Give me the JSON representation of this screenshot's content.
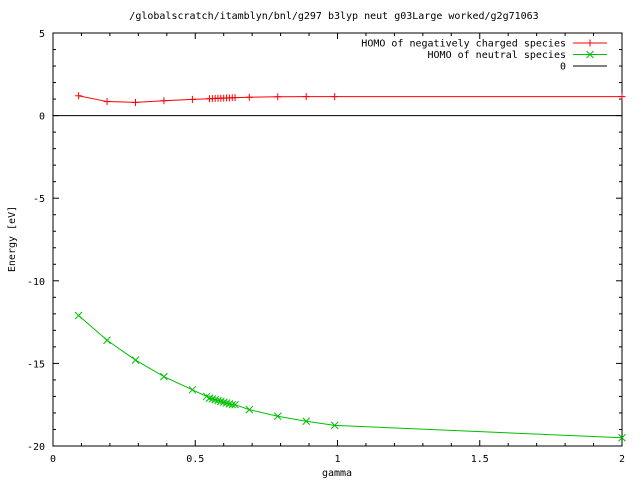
{
  "chart_data": {
    "type": "line",
    "title": "/globalscratch/itamblyn/bnl/g297 b3lyp neut g03Large worked/g2g71063",
    "xlabel": "gamma",
    "ylabel": "Energy [eV]",
    "xlim": [
      0,
      2
    ],
    "ylim": [
      -20,
      5
    ],
    "x_ticks": [
      "0",
      "0.5",
      "1",
      "1.5",
      "2"
    ],
    "y_ticks": [
      "5",
      "0",
      "-5",
      "-10",
      "-15",
      "-20"
    ],
    "legend_position": "top-right",
    "series": [
      {
        "name": "HOMO of negatively charged species",
        "color": "#ff0000",
        "marker": "plus",
        "points": [
          [
            0.09,
            1.2
          ],
          [
            0.19,
            0.85
          ],
          [
            0.29,
            0.8
          ],
          [
            0.39,
            0.9
          ],
          [
            0.49,
            0.98
          ],
          [
            0.55,
            1.02
          ],
          [
            0.56,
            1.03
          ],
          [
            0.57,
            1.04
          ],
          [
            0.58,
            1.05
          ],
          [
            0.59,
            1.05
          ],
          [
            0.6,
            1.06
          ],
          [
            0.61,
            1.07
          ],
          [
            0.62,
            1.07
          ],
          [
            0.63,
            1.08
          ],
          [
            0.64,
            1.09
          ],
          [
            0.69,
            1.11
          ],
          [
            0.79,
            1.14
          ],
          [
            0.89,
            1.15
          ],
          [
            0.99,
            1.15
          ],
          [
            2.0,
            1.15
          ]
        ]
      },
      {
        "name": "HOMO of neutral species",
        "color": "#00c000",
        "marker": "cross",
        "points": [
          [
            0.09,
            -12.1
          ],
          [
            0.19,
            -13.6
          ],
          [
            0.29,
            -14.8
          ],
          [
            0.39,
            -15.8
          ],
          [
            0.49,
            -16.6
          ],
          [
            0.54,
            -17.0
          ],
          [
            0.55,
            -17.1
          ],
          [
            0.56,
            -17.15
          ],
          [
            0.57,
            -17.2
          ],
          [
            0.58,
            -17.25
          ],
          [
            0.59,
            -17.3
          ],
          [
            0.6,
            -17.35
          ],
          [
            0.61,
            -17.4
          ],
          [
            0.62,
            -17.45
          ],
          [
            0.63,
            -17.5
          ],
          [
            0.64,
            -17.5
          ],
          [
            0.69,
            -17.8
          ],
          [
            0.79,
            -18.2
          ],
          [
            0.89,
            -18.5
          ],
          [
            0.99,
            -18.75
          ],
          [
            2.0,
            -19.5
          ]
        ]
      },
      {
        "name": "0",
        "color": "#000000",
        "marker": "none",
        "points": [
          [
            0,
            0
          ],
          [
            2,
            0
          ]
        ]
      }
    ]
  }
}
